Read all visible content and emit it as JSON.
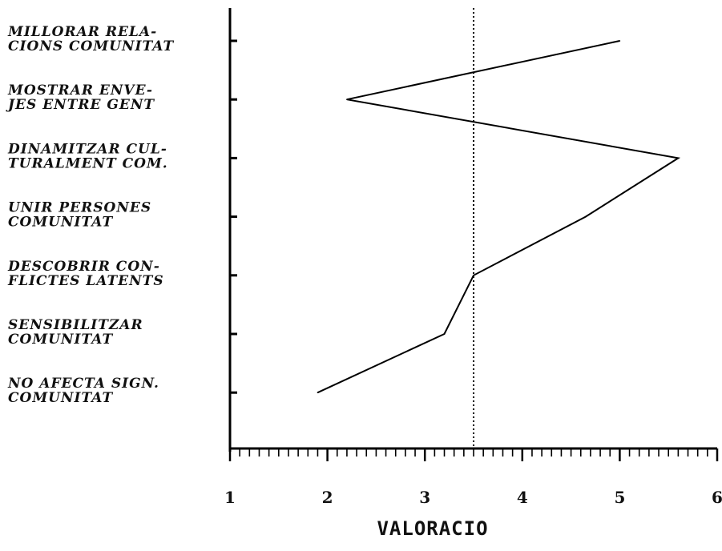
{
  "chart_data": {
    "type": "line",
    "orientation": "horizontal",
    "categories": [
      [
        "MILLORAR RELA-",
        "CIONS COMUNITAT"
      ],
      [
        "MOSTRAR ENVE-",
        "JES ENTRE GENT"
      ],
      [
        "DINAMITZAR CUL-",
        "TURALMENT COM."
      ],
      [
        "UNIR PERSONES",
        "COMUNITAT"
      ],
      [
        "DESCOBRIR CON-",
        "FLICTES LATENTS"
      ],
      [
        "SENSIBILITZAR",
        "COMUNITAT"
      ],
      [
        "NO AFECTA SIGN.",
        "COMUNITAT"
      ]
    ],
    "values": [
      5.0,
      2.2,
      5.6,
      4.65,
      3.5,
      3.2,
      1.9
    ],
    "xlim": [
      1,
      6
    ],
    "xticks": [
      "1",
      "2",
      "3",
      "4",
      "5",
      "6"
    ],
    "xlabel": "VALORACIO",
    "reference_line": 3.5,
    "grid": false,
    "line_color": "#000000"
  }
}
